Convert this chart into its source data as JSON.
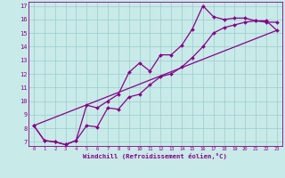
{
  "xlabel": "Windchill (Refroidissement éolien,°C)",
  "background_color": "#c8eae8",
  "grid_color": "#99cccc",
  "line_color": "#880088",
  "xticks": [
    0,
    1,
    2,
    3,
    4,
    5,
    6,
    7,
    8,
    9,
    10,
    11,
    12,
    13,
    14,
    15,
    16,
    17,
    18,
    19,
    20,
    21,
    22,
    23
  ],
  "yticks": [
    7,
    8,
    9,
    10,
    11,
    12,
    13,
    14,
    15,
    16,
    17
  ],
  "xlim": [
    -0.5,
    23.5
  ],
  "ylim": [
    6.7,
    17.3
  ],
  "line1_x": [
    0,
    1,
    2,
    3,
    4,
    5,
    6,
    7,
    8,
    9,
    10,
    11,
    12,
    13,
    14,
    15,
    16,
    17,
    18,
    19,
    20,
    21,
    22,
    23
  ],
  "line1_y": [
    8.2,
    7.1,
    7.0,
    6.8,
    7.1,
    9.7,
    9.5,
    10.0,
    10.5,
    12.1,
    12.8,
    12.2,
    13.4,
    13.4,
    14.1,
    15.3,
    17.0,
    16.2,
    16.0,
    16.1,
    16.1,
    15.9,
    15.8,
    15.8
  ],
  "line2_x": [
    0,
    1,
    2,
    3,
    4,
    5,
    6,
    7,
    8,
    9,
    10,
    11,
    12,
    13,
    14,
    15,
    16,
    17,
    18,
    19,
    20,
    21,
    22,
    23
  ],
  "line2_y": [
    8.2,
    7.1,
    7.0,
    6.8,
    7.1,
    8.2,
    8.1,
    9.5,
    9.4,
    10.3,
    10.5,
    11.2,
    11.8,
    12.0,
    12.5,
    13.2,
    14.0,
    15.0,
    15.4,
    15.6,
    15.8,
    15.9,
    15.9,
    15.2
  ],
  "line3_x": [
    0,
    23
  ],
  "line3_y": [
    8.2,
    15.2
  ]
}
